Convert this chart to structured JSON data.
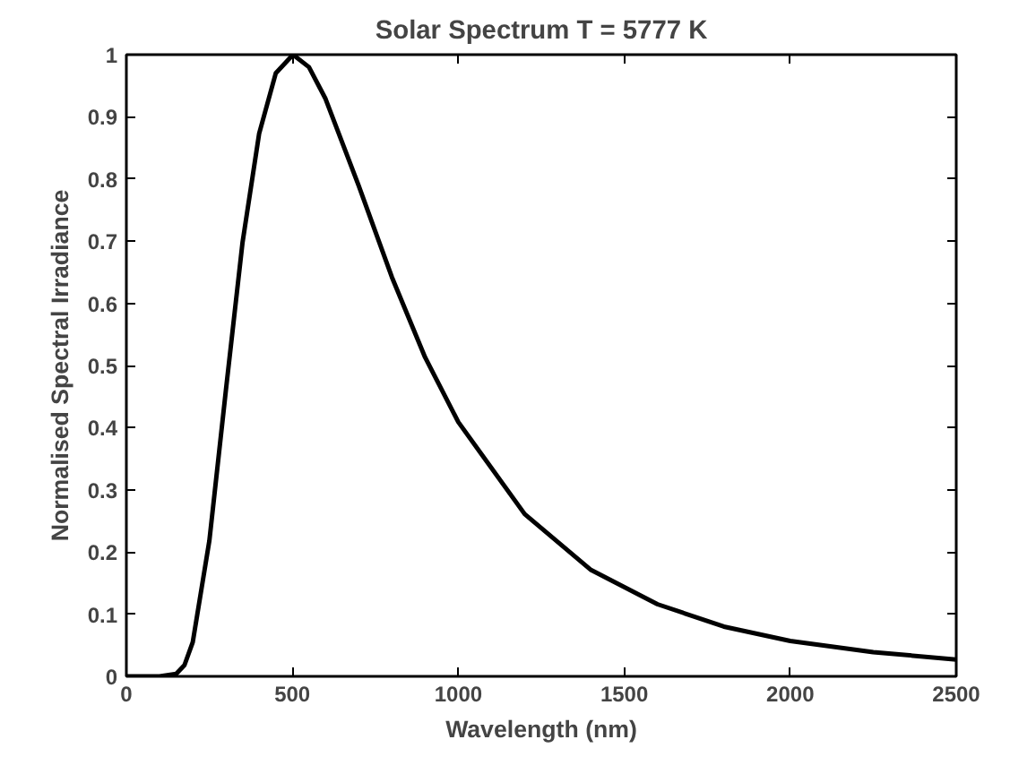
{
  "chart_data": {
    "type": "line",
    "title": "Solar Spectrum T = 5777 K",
    "xlabel": "Wavelength (nm)",
    "ylabel": "Normalised Spectral Irradiance",
    "x": [
      0,
      50,
      100,
      150,
      175,
      200,
      250,
      300,
      350,
      400,
      450,
      502,
      550,
      600,
      700,
      800,
      900,
      1000,
      1200,
      1400,
      1600,
      1800,
      2000,
      2250,
      2500
    ],
    "series": [
      {
        "color": "#000000",
        "values": [
          0,
          0,
          0,
          0.004,
          0.018,
          0.055,
          0.218,
          0.461,
          0.698,
          0.873,
          0.97,
          1.0,
          0.98,
          0.929,
          0.789,
          0.642,
          0.513,
          0.409,
          0.261,
          0.171,
          0.116,
          0.08,
          0.057,
          0.039,
          0.027
        ]
      }
    ],
    "xlim": [
      0,
      2500
    ],
    "xticks": [
      0,
      500,
      1000,
      1500,
      2000,
      2500
    ],
    "ylim": [
      0,
      1
    ],
    "yticks": [
      0,
      0.1,
      0.2,
      0.3,
      0.4,
      0.5,
      0.6,
      0.7,
      0.8,
      0.9,
      1
    ],
    "grid": false,
    "marker": "none",
    "line_style": "solid"
  }
}
